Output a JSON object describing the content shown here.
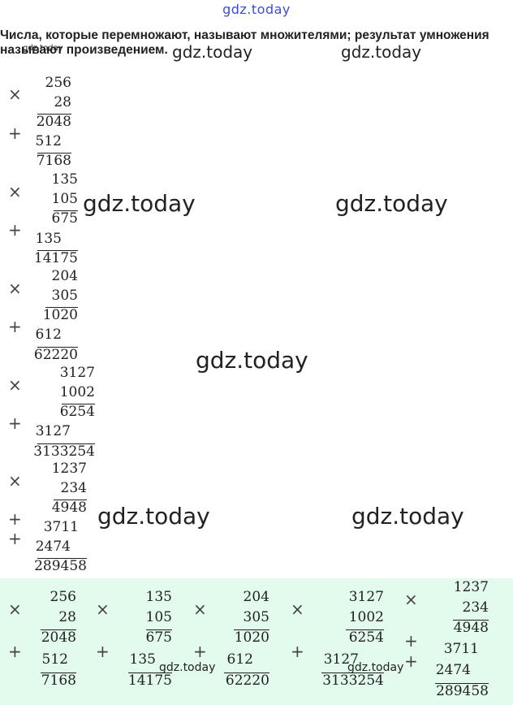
{
  "watermark": "gdz.today",
  "intro": {
    "line1": "Числа, которые перемножают, называют множителями; результат умножения",
    "line2": "называют произведением."
  },
  "ops": {
    "times": "×",
    "plus": "+"
  },
  "problems": [
    {
      "a": "256",
      "b": "28",
      "p1": "2048",
      "p2": "512",
      "result": "7168"
    },
    {
      "a": "135",
      "b": "105",
      "p1": "675",
      "p2": "135",
      "result": "14175"
    },
    {
      "a": "204",
      "b": "305",
      "p1": "1020",
      "p2": "612",
      "result": "62220"
    },
    {
      "a": "3127",
      "b": "1002",
      "p1": "6254",
      "p2": "3127",
      "result": "3133254"
    },
    {
      "a": "1237",
      "b": "234",
      "p1": "4948",
      "p2": "3711",
      "p3": "2474",
      "result": "289458"
    }
  ],
  "colors": {
    "watermark_top": "#3b4bd6",
    "panel_bg": "#e2fbec"
  }
}
